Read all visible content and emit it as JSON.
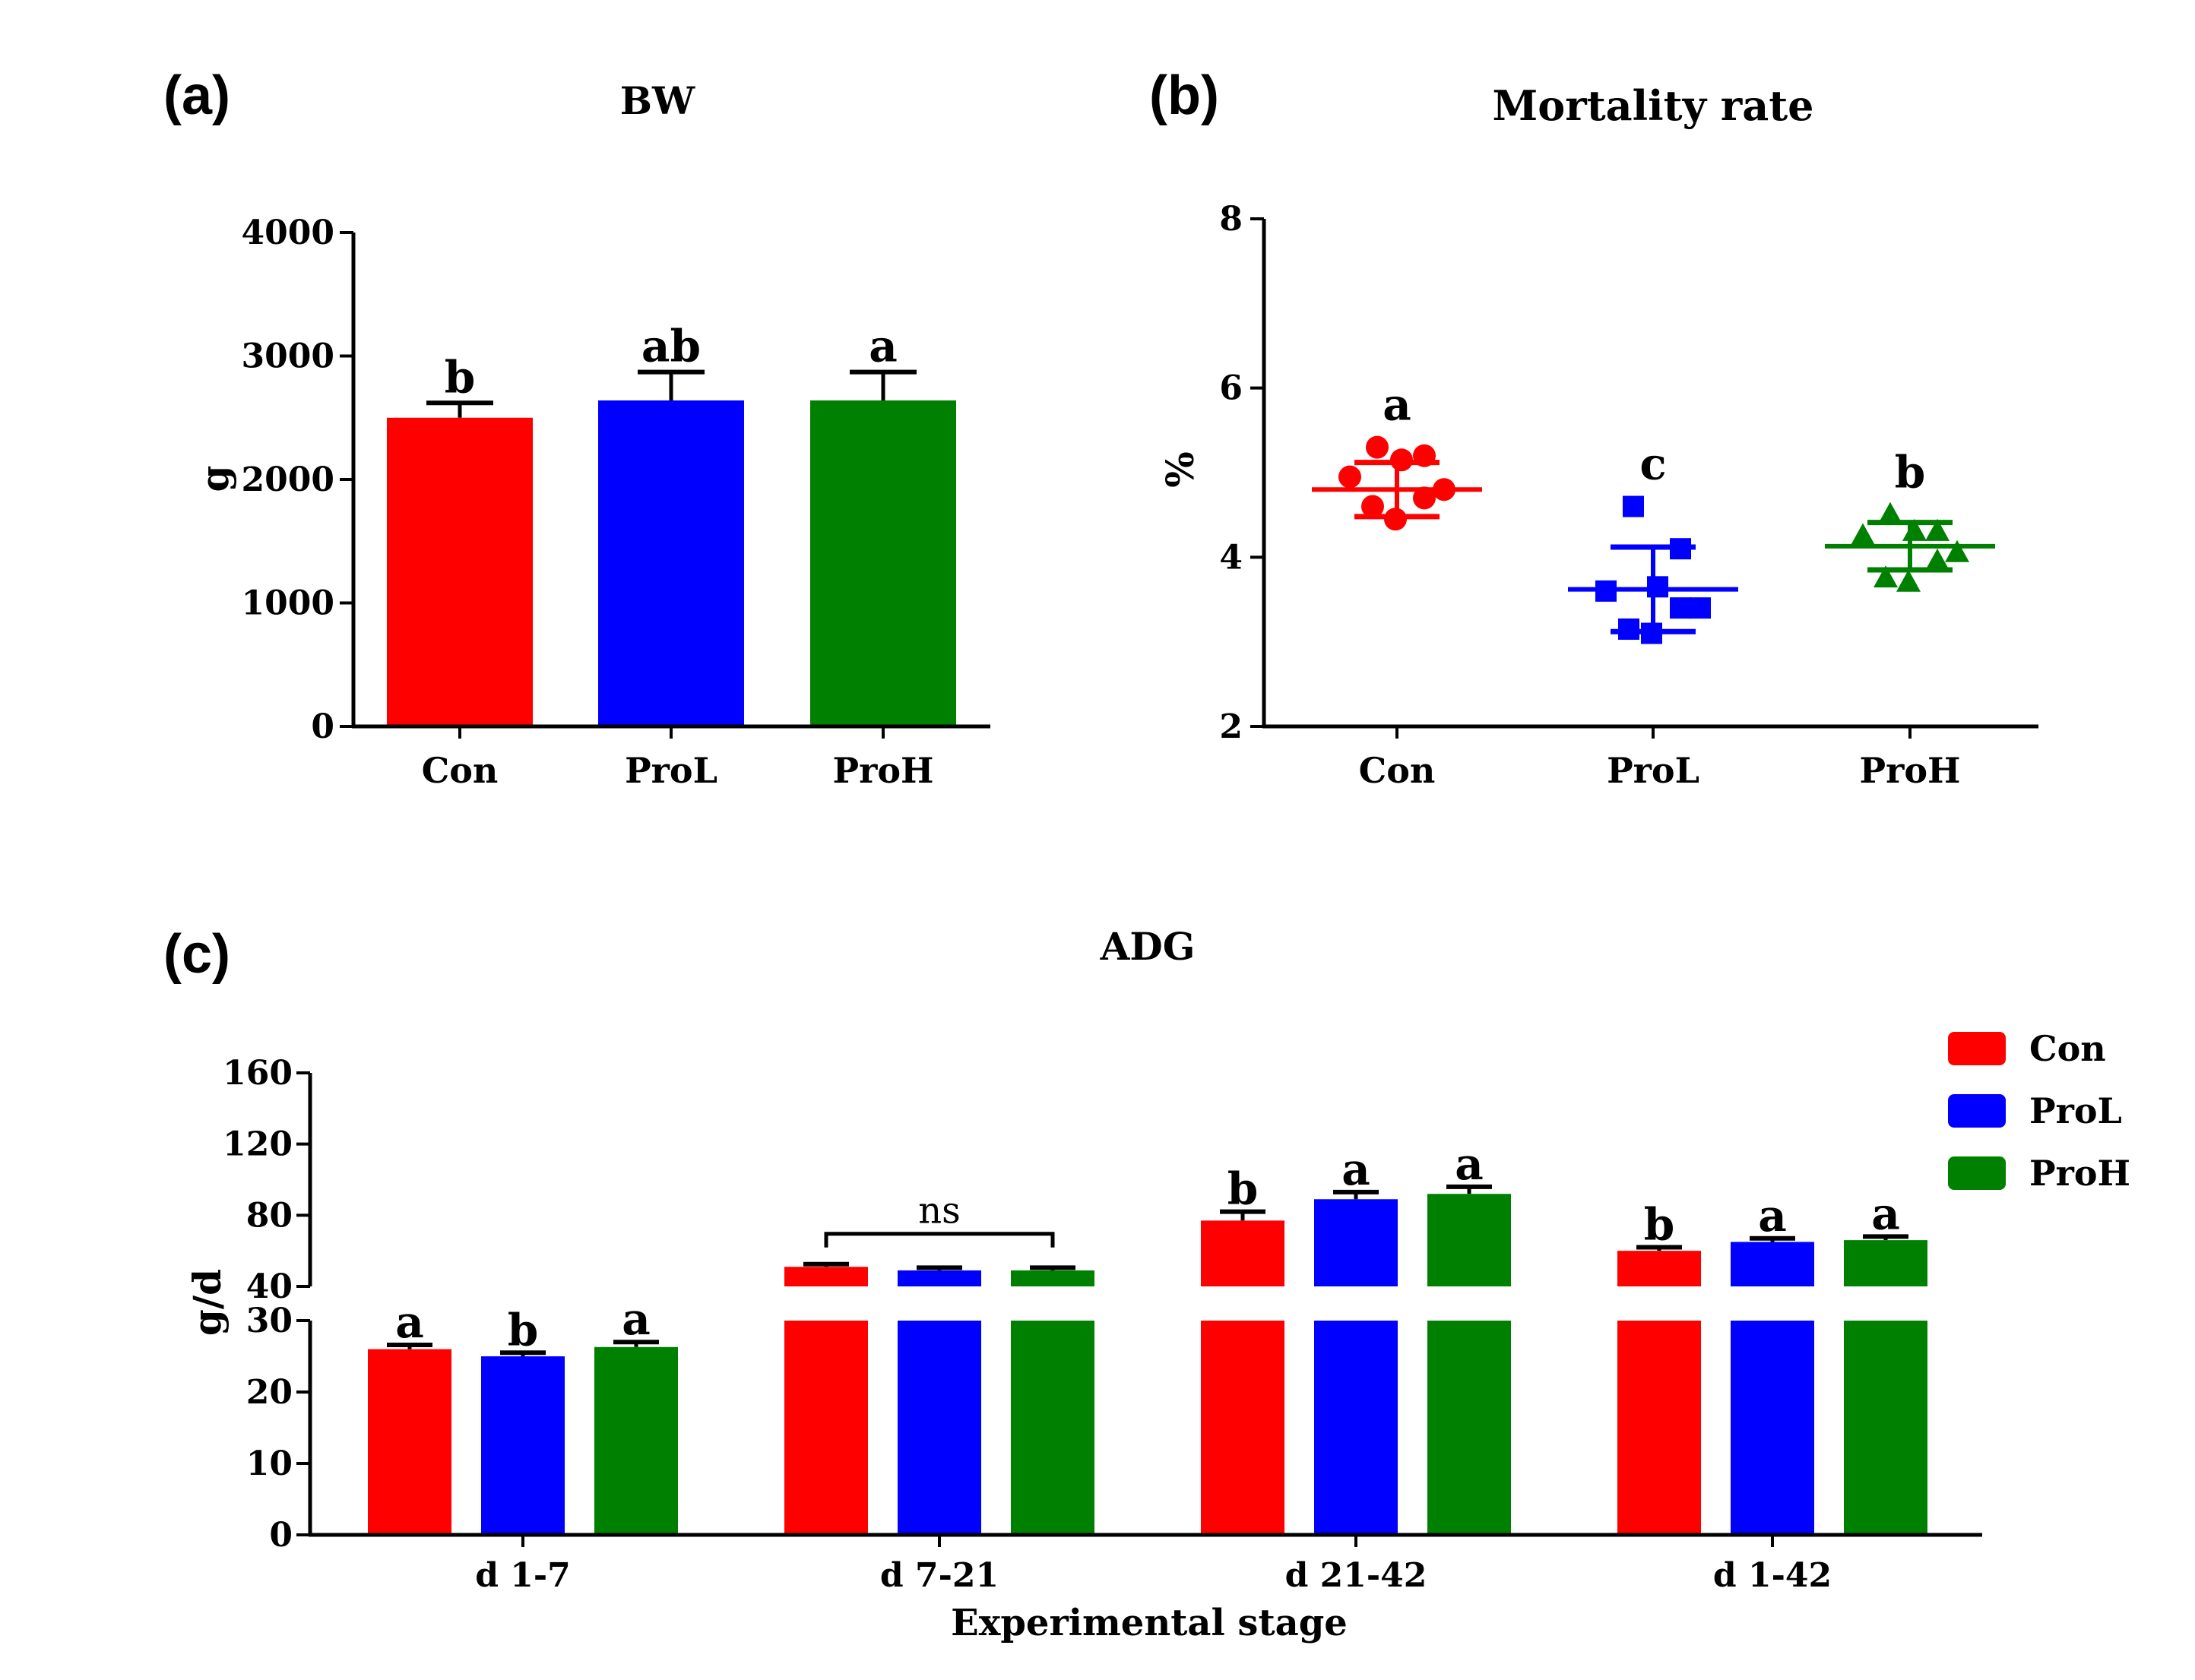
{
  "colors": {
    "Con": "#ff0000",
    "ProL": "#0000ff",
    "ProH": "#008000"
  },
  "chart_data": [
    {
      "panel_label": "(a)",
      "type": "bar",
      "title": "BW",
      "ylabel": "g",
      "xlabel": "",
      "ylim": [
        0,
        4000
      ],
      "yticks": [
        0,
        1000,
        2000,
        3000,
        4000
      ],
      "categories": [
        "Con",
        "ProL",
        "ProH"
      ],
      "values": [
        2500,
        2640,
        2640
      ],
      "errors": [
        120,
        230,
        230
      ],
      "letters": [
        "b",
        "ab",
        "a"
      ]
    },
    {
      "panel_label": "(b)",
      "type": "scatter",
      "title": "Mortality rate",
      "ylabel": "%",
      "xlabel": "",
      "ylim": [
        2,
        8
      ],
      "yticks": [
        2,
        4,
        6,
        8
      ],
      "categories": [
        "Con",
        "ProL",
        "ProH"
      ],
      "means": [
        4.8,
        3.62,
        4.13
      ],
      "sd": [
        0.32,
        0.5,
        0.28
      ],
      "points": [
        [
          5.3,
          5.2,
          5.15,
          4.95,
          4.8,
          4.7,
          4.6,
          4.45
        ],
        [
          4.6,
          4.1,
          3.65,
          3.6,
          3.4,
          3.4,
          3.15,
          3.1
        ],
        [
          4.5,
          4.3,
          4.3,
          4.25,
          4.05,
          3.95,
          3.75,
          3.7
        ]
      ],
      "markers": [
        "circle",
        "square",
        "triangle"
      ],
      "letters": [
        "a",
        "c",
        "b"
      ]
    },
    {
      "panel_label": "(c)",
      "type": "bar",
      "title": "ADG",
      "xlabel": "Experimental stage",
      "ylabel": "g/d",
      "axis_break": {
        "lower_range": [
          0,
          30
        ],
        "upper_range": [
          40,
          160
        ]
      },
      "yticks_lower": [
        0,
        10,
        20,
        30
      ],
      "yticks_upper": [
        40,
        80,
        120,
        160
      ],
      "categories": [
        "d 1-7",
        "d 7-21",
        "d 21-42",
        "d 1-42"
      ],
      "series": [
        {
          "name": "Con",
          "values": [
            26,
            51,
            77,
            60
          ],
          "errors": [
            0.6,
            1.5,
            5,
            2
          ]
        },
        {
          "name": "ProL",
          "values": [
            25,
            49,
            89,
            65
          ],
          "errors": [
            0.5,
            1.5,
            4,
            2
          ]
        },
        {
          "name": "ProH",
          "values": [
            26.3,
            49,
            92,
            66
          ],
          "errors": [
            0.7,
            1.5,
            4,
            2
          ]
        }
      ],
      "letters": [
        [
          "a",
          "b",
          "a"
        ],
        [
          "",
          "",
          ""
        ],
        [
          "b",
          "a",
          "a"
        ],
        [
          "b",
          "a",
          "a"
        ]
      ],
      "group_annotation": {
        "category": "d 7-21",
        "text": "ns"
      },
      "legend": [
        "Con",
        "ProL",
        "ProH"
      ],
      "legend_position": "top-right"
    }
  ]
}
